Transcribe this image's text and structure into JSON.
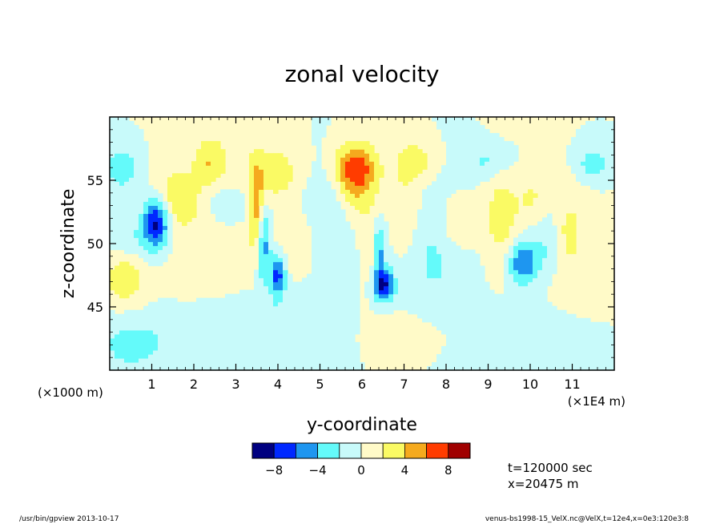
{
  "chart_data": {
    "type": "heatmap",
    "title": "zonal velocity",
    "xlabel": "y-coordinate",
    "ylabel": "z-coordinate",
    "x_unit_left": "(×1000 m)",
    "x_unit_right": "(×1E4 m)",
    "xlim": [
      0,
      12
    ],
    "ylim": [
      40,
      60
    ],
    "x_ticks": [
      1,
      2,
      3,
      4,
      5,
      6,
      7,
      8,
      9,
      10,
      11
    ],
    "x_tick_labels": [
      "1",
      "2",
      "3",
      "4",
      "5",
      "6",
      "7",
      "8",
      "9",
      "10",
      "11"
    ],
    "y_ticks": [
      45,
      50,
      55
    ],
    "y_tick_labels": [
      "45",
      "50",
      "55"
    ],
    "colorbar": {
      "levels": [
        -10,
        -8,
        -6,
        -4,
        -2,
        0,
        2,
        4,
        6,
        8,
        10
      ],
      "colors": [
        "#000080",
        "#0028ff",
        "#1e96f0",
        "#64fafa",
        "#c8fafa",
        "#fffac8",
        "#fafa64",
        "#f5aa1e",
        "#ff3c00",
        "#a00000"
      ],
      "tick_values": [
        -8,
        -4,
        0,
        4,
        8
      ],
      "tick_labels": [
        "−8",
        "−4",
        "0",
        "4",
        "8"
      ]
    },
    "features": [
      {
        "y": 0.3,
        "z": 56.0,
        "value": -3,
        "sy": 0.35,
        "sz": 1.6
      },
      {
        "y": 1.1,
        "z": 51.8,
        "value": -9,
        "sy": 0.22,
        "sz": 1.4
      },
      {
        "y": 1.5,
        "z": 53.5,
        "value": 3,
        "sy": 0.4,
        "sz": 1.4
      },
      {
        "y": 0.35,
        "z": 47.5,
        "value": 4,
        "sy": 0.35,
        "sz": 1.6
      },
      {
        "y": 0.5,
        "z": 50.0,
        "value": -2.5,
        "sy": 0.5,
        "sz": 1.6
      },
      {
        "y": 2.4,
        "z": 56.5,
        "value": 3,
        "sy": 0.25,
        "sz": 1.2
      },
      {
        "y": 2.4,
        "z": 50.0,
        "value": 1.5,
        "sy": 1.1,
        "sz": 8.0
      },
      {
        "y": 2.8,
        "z": 53.0,
        "value": -3,
        "sy": 0.35,
        "sz": 1.2
      },
      {
        "y": 3.5,
        "z": 52.5,
        "value": 5,
        "sy": 0.12,
        "sz": 2.6
      },
      {
        "y": 3.65,
        "z": 50.0,
        "value": -6,
        "sy": 0.12,
        "sz": 2.2
      },
      {
        "y": 4.0,
        "z": 55.5,
        "value": 3,
        "sy": 0.5,
        "sz": 1.6
      },
      {
        "y": 4.0,
        "z": 47.5,
        "value": -7,
        "sy": 0.12,
        "sz": 1.2
      },
      {
        "y": 4.5,
        "z": 50.5,
        "value": 3,
        "sy": 0.35,
        "sz": 2.0
      },
      {
        "y": 5.0,
        "z": 52.0,
        "value": -2.5,
        "sy": 0.7,
        "sz": 3.0
      },
      {
        "y": 5.85,
        "z": 56.0,
        "value": 7,
        "sy": 0.35,
        "sz": 1.4
      },
      {
        "y": 5.9,
        "z": 53.5,
        "value": 3,
        "sy": 0.35,
        "sz": 2.0
      },
      {
        "y": 6.5,
        "z": 46.8,
        "value": -8,
        "sy": 0.18,
        "sz": 0.9
      },
      {
        "y": 6.4,
        "z": 49.5,
        "value": -5,
        "sy": 0.1,
        "sz": 1.6
      },
      {
        "y": 6.2,
        "z": 49.0,
        "value": 2.5,
        "sy": 0.2,
        "sz": 2.2
      },
      {
        "y": 7.0,
        "z": 52.0,
        "value": 3,
        "sy": 0.3,
        "sz": 3.5
      },
      {
        "y": 7.3,
        "z": 56.5,
        "value": 3,
        "sy": 0.3,
        "sz": 1.0
      },
      {
        "y": 7.5,
        "z": 49.0,
        "value": -2.5,
        "sy": 0.8,
        "sz": 3.5
      },
      {
        "y": 7.5,
        "z": 43.0,
        "value": 1.5,
        "sy": 1.1,
        "sz": 2.0
      },
      {
        "y": 8.3,
        "z": 51.5,
        "value": 3,
        "sy": 0.3,
        "sz": 1.5
      },
      {
        "y": 9.3,
        "z": 52.0,
        "value": 3,
        "sy": 0.3,
        "sz": 3.0
      },
      {
        "y": 9.0,
        "z": 56.5,
        "value": -2.5,
        "sy": 0.4,
        "sz": 1.0
      },
      {
        "y": 9.8,
        "z": 48.5,
        "value": -6,
        "sy": 0.25,
        "sz": 1.2
      },
      {
        "y": 10.1,
        "z": 53.0,
        "value": 3,
        "sy": 0.3,
        "sz": 2.0
      },
      {
        "y": 10.3,
        "z": 50.5,
        "value": -3,
        "sy": 0.35,
        "sz": 2.2
      },
      {
        "y": 10.9,
        "z": 51.0,
        "value": 3,
        "sy": 0.25,
        "sz": 2.0
      },
      {
        "y": 11.5,
        "z": 56.3,
        "value": -4,
        "sy": 0.22,
        "sz": 0.7
      },
      {
        "y": 11.0,
        "z": 45.0,
        "value": 1.5,
        "sy": 1.2,
        "sz": 3.0
      },
      {
        "y": 3.0,
        "z": 43.0,
        "value": -2.5,
        "sy": 1.5,
        "sz": 2.5
      },
      {
        "y": 10.0,
        "z": 42.5,
        "value": -2.5,
        "sy": 1.5,
        "sz": 2.5
      },
      {
        "y": 0.5,
        "z": 42.0,
        "value": -2.5,
        "sy": 0.6,
        "sz": 1.5
      }
    ]
  },
  "info": {
    "time": "t=120000 sec",
    "position": "x=20475 m"
  },
  "footer": {
    "left": "/usr/bin/gpview  2013-10-17",
    "right": "venus-bs1998-15_VelX.nc@VelX,t=12e4,x=0e3:120e3:8"
  }
}
